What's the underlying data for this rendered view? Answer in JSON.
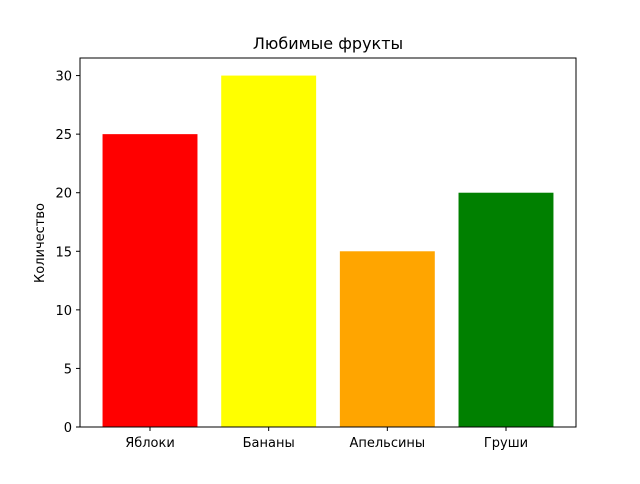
{
  "chart_data": {
    "type": "bar",
    "title": "Любимые фрукты",
    "xlabel": "",
    "ylabel": "Количество",
    "categories": [
      "Яблоки",
      "Бананы",
      "Апельсины",
      "Груши"
    ],
    "values": [
      25,
      30,
      15,
      20
    ],
    "colors": [
      "#ff0000",
      "#ffff00",
      "#ffa500",
      "#008000"
    ],
    "ylim": [
      0,
      31.5
    ],
    "yticks": [
      0,
      5,
      10,
      15,
      20,
      25,
      30
    ],
    "grid": false
  }
}
